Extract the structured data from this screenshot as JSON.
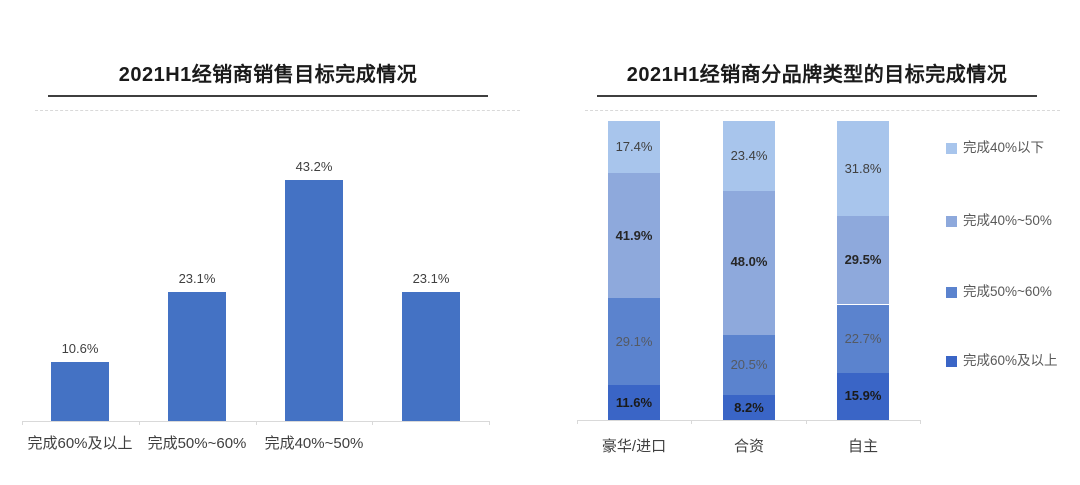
{
  "chart_data": [
    {
      "type": "bar",
      "title": "2021H1经销商销售目标完成情况",
      "categories": [
        "完成60%及以上",
        "完成50%~60%",
        "完成40%~50%",
        ""
      ],
      "values": [
        10.6,
        23.1,
        43.2,
        23.1
      ],
      "value_labels": [
        "10.6%",
        "23.1%",
        "43.2%",
        "23.1%"
      ],
      "bar_color": "#4472C4",
      "value_label_color": "#404040",
      "xlabel": "",
      "ylabel": "",
      "ylim": [
        0,
        50
      ],
      "grid": false,
      "legend_position": "none"
    },
    {
      "type": "stacked-bar",
      "title": "2021H1经销商分品牌类型的目标完成情况",
      "categories": [
        "豪华/进口",
        "合资",
        "自主"
      ],
      "series": [
        {
          "name": "完成60%及以上",
          "color": "#3A65C6",
          "values": [
            11.6,
            8.2,
            15.9
          ],
          "value_labels": [
            "11.6%",
            "8.2%",
            "15.9%"
          ],
          "label_color": "#1a1a1a",
          "label_bold": true
        },
        {
          "name": "完成50%~60%",
          "color": "#5B83CE",
          "values": [
            29.1,
            20.5,
            22.7
          ],
          "value_labels": [
            "29.1%",
            "20.5%",
            "22.7%"
          ],
          "label_color": "#555a63",
          "label_bold": false
        },
        {
          "name": "完成40%~50%",
          "color": "#8EA9DC",
          "values": [
            41.9,
            48.0,
            29.5
          ],
          "value_labels": [
            "41.9%",
            "48.0%",
            "29.5%"
          ],
          "label_color": "#262626",
          "label_bold": true
        },
        {
          "name": "完成40%以下",
          "color": "#A8C5EC",
          "values": [
            17.4,
            23.4,
            31.8
          ],
          "value_labels": [
            "17.4%",
            "23.4%",
            "31.8%"
          ],
          "label_color": "#404040",
          "label_bold": false
        }
      ],
      "legend_order_top_to_bottom": [
        "完成40%以下",
        "完成40%~50%",
        "完成50%~60%",
        "完成60%及以上"
      ],
      "xlabel": "",
      "ylabel": "",
      "ylim": [
        0,
        100
      ],
      "grid": false,
      "legend_position": "right"
    }
  ]
}
